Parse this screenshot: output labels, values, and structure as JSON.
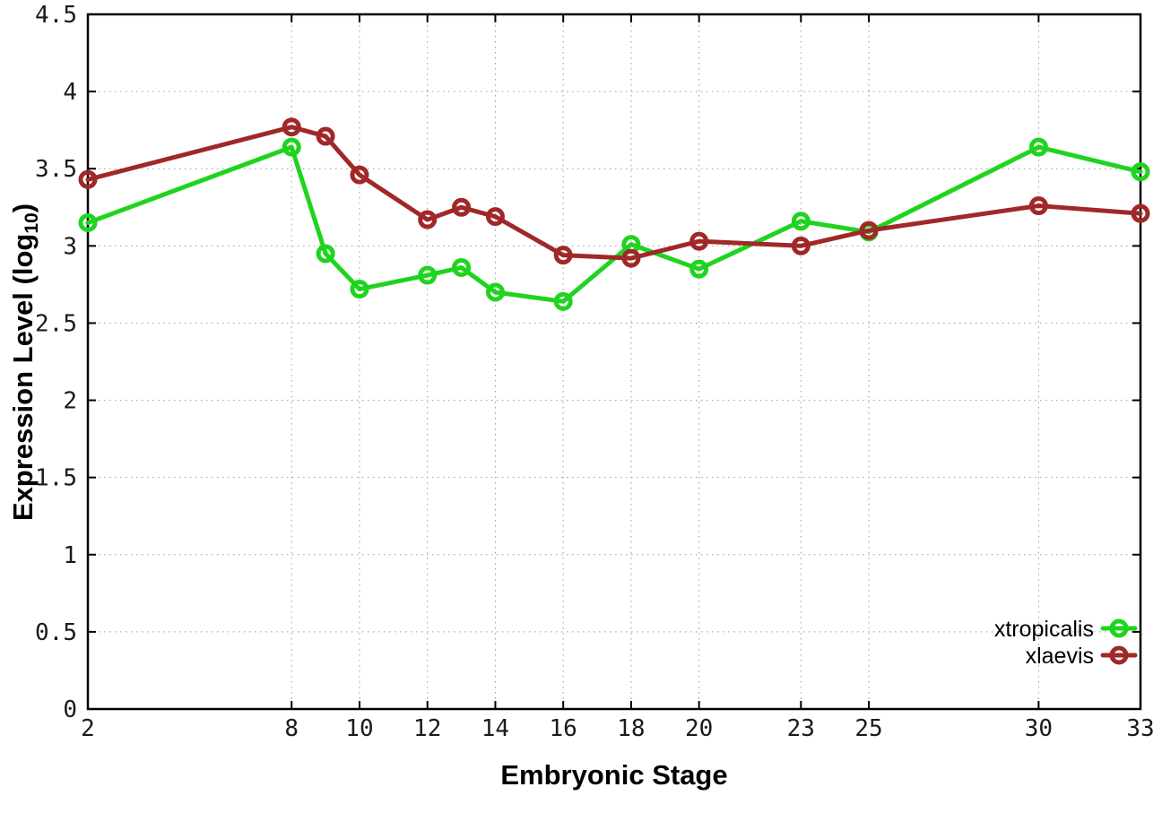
{
  "chart_data": {
    "type": "line",
    "title": "",
    "xlabel": "Embryonic Stage",
    "ylabel": "Expression Level (log10)",
    "ylabel_parts": {
      "prefix": "Expression Level (log",
      "sub": "10",
      "suffix": ")"
    },
    "x": [
      2,
      8,
      9,
      10,
      12,
      13,
      14,
      16,
      18,
      20,
      23,
      25,
      30,
      33
    ],
    "series": [
      {
        "name": "xtropicalis",
        "color": "#1fd41f",
        "values": [
          3.15,
          3.64,
          2.95,
          2.72,
          2.81,
          2.86,
          2.7,
          2.64,
          3.01,
          2.85,
          3.16,
          3.09,
          3.64,
          3.48
        ]
      },
      {
        "name": "xlaevis",
        "color": "#a02828",
        "values": [
          3.43,
          3.77,
          3.71,
          3.46,
          3.17,
          3.25,
          3.19,
          2.94,
          2.92,
          3.03,
          3.0,
          3.1,
          3.26,
          3.21
        ]
      }
    ],
    "xlim": [
      2,
      33
    ],
    "ylim": [
      0,
      4.5
    ],
    "xticks": [
      2,
      8,
      10,
      12,
      14,
      16,
      18,
      20,
      23,
      25,
      30,
      33
    ],
    "xtick_labels": [
      "2",
      "8",
      "10",
      "12",
      "14",
      "16",
      "18",
      "20",
      "23",
      "25",
      "30",
      "33"
    ],
    "yticks": [
      0,
      0.5,
      1,
      1.5,
      2,
      2.5,
      3,
      3.5,
      4,
      4.5
    ],
    "ytick_labels": [
      "0",
      "0.5",
      "1",
      "1.5",
      "2",
      "2.5",
      "3",
      "3.5",
      "4",
      "4.5"
    ],
    "grid": true,
    "legend_position": "bottom-right",
    "legend_entries": [
      "xtropicalis",
      "xlaevis"
    ],
    "colors": {
      "background": "#ffffff",
      "axis": "#000000",
      "grid": "#999999",
      "tick_label": "#1a1a1a"
    }
  }
}
